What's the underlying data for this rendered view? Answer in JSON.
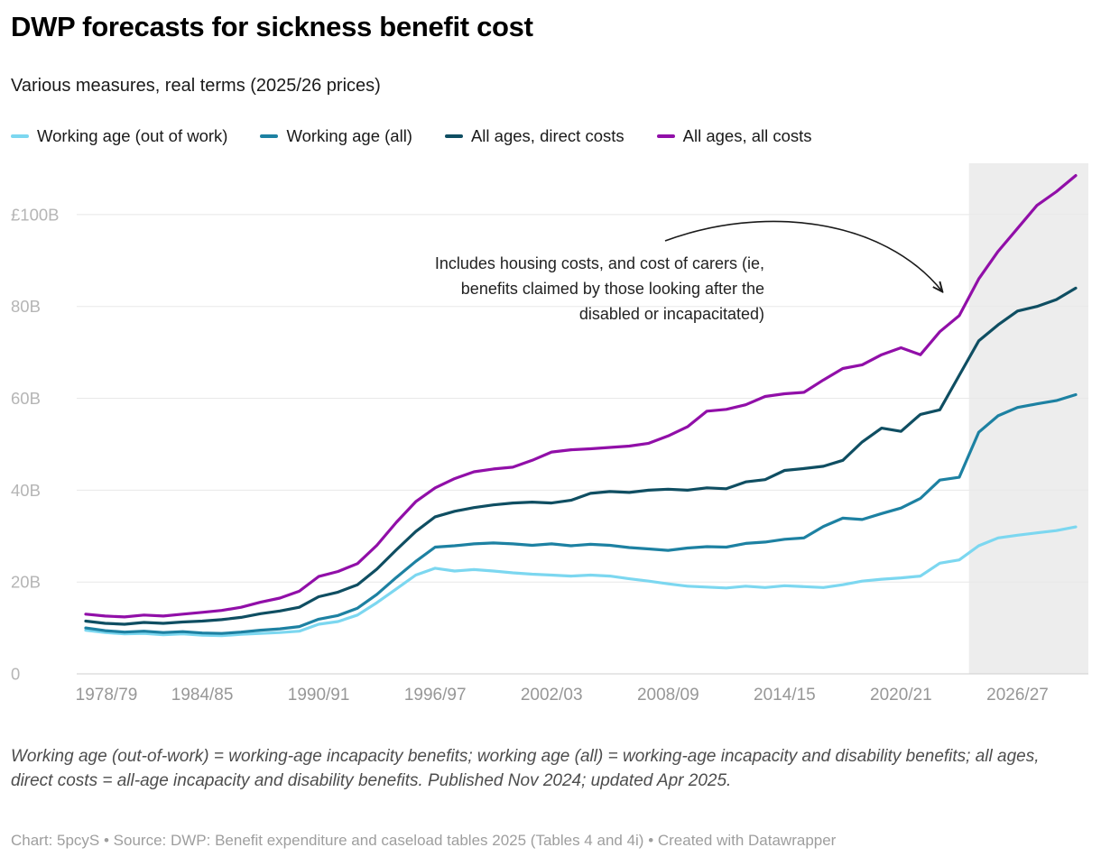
{
  "header": {
    "title": "DWP forecasts for sickness benefit cost",
    "subtitle": "Various measures, real terms (2025/26 prices)"
  },
  "legend": {
    "items": [
      {
        "label": "Working age (out of work)",
        "color": "#7cd7f0"
      },
      {
        "label": "Working age (all)",
        "color": "#1d81a2"
      },
      {
        "label": "All ages, direct costs",
        "color": "#0f4e62"
      },
      {
        "label": "All ages, all costs",
        "color": "#910fa8"
      }
    ]
  },
  "chart_data": {
    "type": "line",
    "title": "DWP forecasts for sickness benefit cost",
    "subtitle": "Various measures, real terms (2025/26 prices)",
    "unit": "GBP billions, real terms 2025/26 prices",
    "ylim": [
      0,
      110
    ],
    "grid": "horizontal",
    "legend_position": "top",
    "yticks": [
      {
        "value": 0,
        "label": "0"
      },
      {
        "value": 20,
        "label": "20B"
      },
      {
        "value": 40,
        "label": "40B"
      },
      {
        "value": 60,
        "label": "60B"
      },
      {
        "value": 80,
        "label": "80B"
      },
      {
        "value": 100,
        "label": "£100B"
      }
    ],
    "xticks": [
      "1978/79",
      "1984/85",
      "1990/91",
      "1996/97",
      "2002/03",
      "2008/09",
      "2014/15",
      "2020/21",
      "2026/27"
    ],
    "x": [
      "1978/79",
      "1979/80",
      "1980/81",
      "1981/82",
      "1982/83",
      "1983/84",
      "1984/85",
      "1985/86",
      "1986/87",
      "1987/88",
      "1988/89",
      "1989/90",
      "1990/91",
      "1991/92",
      "1992/93",
      "1993/94",
      "1994/95",
      "1995/96",
      "1996/97",
      "1997/98",
      "1998/99",
      "1999/00",
      "2000/01",
      "2001/02",
      "2002/03",
      "2003/04",
      "2004/05",
      "2005/06",
      "2006/07",
      "2007/08",
      "2008/09",
      "2009/10",
      "2010/11",
      "2011/12",
      "2012/13",
      "2013/14",
      "2014/15",
      "2015/16",
      "2016/17",
      "2017/18",
      "2018/19",
      "2019/20",
      "2020/21",
      "2021/22",
      "2022/23",
      "2023/24",
      "2024/25",
      "2025/26",
      "2026/27",
      "2027/28",
      "2028/29",
      "2029/30"
    ],
    "forecast_start": "2024/25",
    "series": [
      {
        "name": "Working age (out of work)",
        "color": "#7cd7f0",
        "values": [
          9.5,
          9.0,
          8.7,
          8.8,
          8.5,
          8.7,
          8.4,
          8.3,
          8.6,
          8.8,
          9.0,
          9.3,
          10.8,
          11.4,
          12.8,
          15.5,
          18.5,
          21.5,
          23.0,
          22.4,
          22.7,
          22.4,
          22.0,
          21.7,
          21.5,
          21.3,
          21.5,
          21.3,
          20.7,
          20.2,
          19.6,
          19.1,
          18.9,
          18.7,
          19.1,
          18.8,
          19.2,
          19.0,
          18.8,
          19.4,
          20.2,
          20.6,
          20.9,
          21.3,
          24.1,
          24.8,
          27.9,
          29.6,
          30.2,
          30.7,
          31.2,
          32.0
        ]
      },
      {
        "name": "Working age (all)",
        "color": "#1d81a2",
        "values": [
          10.0,
          9.4,
          9.1,
          9.3,
          9.0,
          9.2,
          8.9,
          8.8,
          9.1,
          9.5,
          9.8,
          10.3,
          11.9,
          12.7,
          14.3,
          17.3,
          21.0,
          24.5,
          27.6,
          27.9,
          28.3,
          28.5,
          28.3,
          28.0,
          28.3,
          27.9,
          28.2,
          28.0,
          27.5,
          27.2,
          26.9,
          27.4,
          27.7,
          27.6,
          28.4,
          28.7,
          29.3,
          29.6,
          32.1,
          33.9,
          33.6,
          34.9,
          36.1,
          38.2,
          42.2,
          42.8,
          52.6,
          56.2,
          58.0,
          58.8,
          59.5,
          60.8
        ]
      },
      {
        "name": "All ages, direct costs",
        "color": "#0f4e62",
        "values": [
          11.5,
          11.0,
          10.8,
          11.2,
          11.0,
          11.3,
          11.5,
          11.8,
          12.3,
          13.1,
          13.7,
          14.5,
          16.8,
          17.8,
          19.4,
          22.8,
          27.0,
          31.0,
          34.2,
          35.4,
          36.2,
          36.8,
          37.2,
          37.4,
          37.2,
          37.8,
          39.3,
          39.7,
          39.5,
          40.0,
          40.2,
          40.0,
          40.5,
          40.3,
          41.8,
          42.3,
          44.3,
          44.7,
          45.2,
          46.5,
          50.5,
          53.5,
          52.8,
          56.5,
          57.5,
          65.0,
          72.5,
          76.0,
          79.0,
          80.0,
          81.5,
          84.0
        ]
      },
      {
        "name": "All ages, all costs",
        "color": "#910fa8",
        "values": [
          13.0,
          12.6,
          12.4,
          12.8,
          12.6,
          13.0,
          13.4,
          13.8,
          14.5,
          15.6,
          16.5,
          18.0,
          21.2,
          22.3,
          24.0,
          28.0,
          33.0,
          37.5,
          40.5,
          42.5,
          44.0,
          44.6,
          45.0,
          46.5,
          48.3,
          48.8,
          49.0,
          49.3,
          49.6,
          50.2,
          51.8,
          53.8,
          57.2,
          57.6,
          58.6,
          60.4,
          61.0,
          61.3,
          64.0,
          66.5,
          67.3,
          69.5,
          71.0,
          69.5,
          74.5,
          78.0,
          86.0,
          92.0,
          97.0,
          102.0,
          105.0,
          108.5
        ]
      }
    ],
    "annotation": {
      "lines": [
        "Includes housing costs, and cost of carers (ie,",
        "benefits claimed by those looking after the",
        "disabled or incapacitated)"
      ]
    }
  },
  "notes": "Working age (out-of-work) = working-age incapacity benefits; working age (all) = working-age incapacity and disability benefits; all ages, direct costs = all-age incapacity and disability benefits. Published Nov 2024; updated Apr 2025.",
  "footer": "Chart: 5pcyS • Source: DWP: Benefit expenditure and caseload tables 2025 (Tables 4 and 4i) • Created with Datawrapper"
}
